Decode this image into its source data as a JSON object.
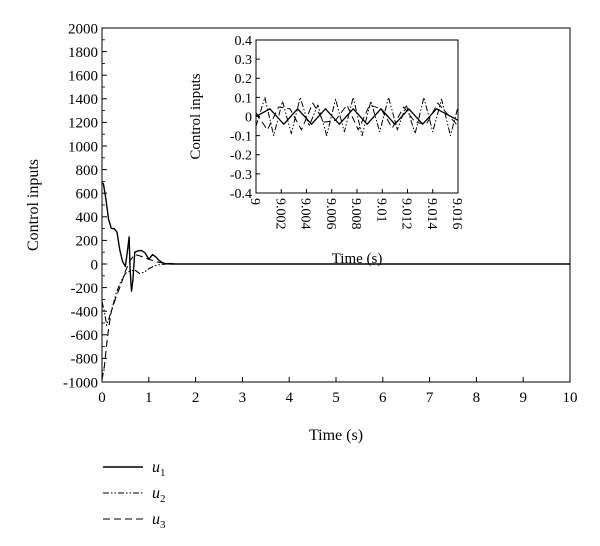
{
  "chart_data": [
    {
      "type": "line",
      "xlabel": "Time (s)",
      "ylabel": "Control inputs",
      "xlim": [
        0,
        10
      ],
      "ylim": [
        -1000,
        2000
      ],
      "xticks": [
        0,
        1,
        2,
        3,
        4,
        5,
        6,
        7,
        8,
        9,
        10
      ],
      "yticks": [
        -1000,
        -800,
        -600,
        -400,
        -200,
        0,
        200,
        400,
        600,
        800,
        1000,
        1200,
        1400,
        1600,
        1800,
        2000
      ],
      "legend_position": "bottom-left, below plot",
      "series": [
        {
          "name": "u1",
          "style": "solid",
          "x": [
            0,
            0.03,
            0.08,
            0.14,
            0.2,
            0.26,
            0.32,
            0.38,
            0.44,
            0.5,
            0.55,
            0.58,
            0.6,
            0.63,
            0.66,
            0.7,
            0.76,
            0.84,
            0.92,
            1.0,
            1.08,
            1.15,
            1.22,
            1.3,
            1.4,
            1.5,
            2,
            10
          ],
          "y": [
            690,
            680,
            560,
            380,
            300,
            300,
            270,
            120,
            20,
            -20,
            130,
            230,
            -40,
            -230,
            -140,
            100,
            110,
            115,
            95,
            40,
            80,
            60,
            30,
            8,
            2,
            0,
            0,
            0
          ]
        },
        {
          "name": "u2",
          "style": "dash-dot-dot",
          "x": [
            0,
            0.05,
            0.1,
            0.2,
            0.3,
            0.4,
            0.5,
            0.6,
            0.7,
            0.8,
            0.9,
            1.0,
            1.1,
            1.2,
            1.3,
            1.4,
            1.5,
            2,
            10
          ],
          "y": [
            -320,
            -400,
            -520,
            -400,
            -250,
            -150,
            -80,
            -60,
            -50,
            -80,
            -70,
            -40,
            -20,
            -8,
            -3,
            0,
            0,
            0,
            0
          ]
        },
        {
          "name": "u3",
          "style": "dashed",
          "x": [
            0,
            0.05,
            0.1,
            0.15,
            0.2,
            0.3,
            0.4,
            0.5,
            0.6,
            0.7,
            0.8,
            1.0,
            1.2,
            1.4,
            1.6,
            2,
            10
          ],
          "y": [
            -980,
            -870,
            -680,
            -520,
            -400,
            -280,
            -180,
            -60,
            30,
            80,
            70,
            40,
            15,
            5,
            0,
            0,
            0
          ]
        }
      ]
    },
    {
      "type": "line",
      "inset": true,
      "xlabel": "Time (s)",
      "ylabel": "Control inputs",
      "xlim": [
        9,
        9.016
      ],
      "ylim": [
        -0.4,
        0.4
      ],
      "xticks": [
        "9",
        "9.002",
        "9.004",
        "9.006",
        "9.008",
        "9.01",
        "9.012",
        "9.014",
        "9.016"
      ],
      "yticks": [
        "-0.4",
        "-0.3",
        "-0.2",
        "-0.1",
        "0",
        "0.1",
        "0.2",
        "0.3",
        "0.4"
      ],
      "series": [
        {
          "name": "u1",
          "style": "solid",
          "x": [
            9,
            9.0011,
            9.0022,
            9.0033,
            9.0044,
            9.0055,
            9.0066,
            9.0077,
            9.0088,
            9.0099,
            9.011,
            9.0121,
            9.0132,
            9.0143,
            9.016
          ],
          "y": [
            0,
            0.04,
            -0.04,
            0.04,
            -0.04,
            0.04,
            -0.04,
            0.04,
            -0.04,
            0.04,
            -0.04,
            0.04,
            -0.04,
            0.04,
            -0.02
          ]
        },
        {
          "name": "u2",
          "style": "dash-dot-dot",
          "x": [
            9,
            9.0007,
            9.0014,
            9.0021,
            9.0028,
            9.0035,
            9.0042,
            9.0049,
            9.0056,
            9.0063,
            9.007,
            9.0077,
            9.0084,
            9.0091,
            9.0098,
            9.0105,
            9.0112,
            9.0119,
            9.0126,
            9.0133,
            9.014,
            9.0147,
            9.0154,
            9.016
          ],
          "y": [
            -0.05,
            0.1,
            -0.1,
            0.08,
            -0.09,
            0.1,
            -0.05,
            0.06,
            -0.1,
            0.09,
            -0.08,
            0.1,
            -0.1,
            0.08,
            -0.08,
            0.1,
            -0.07,
            0.06,
            -0.09,
            0.1,
            -0.08,
            0.09,
            -0.1,
            0.05
          ]
        },
        {
          "name": "u3",
          "style": "dashed",
          "x": [
            9,
            9.0009,
            9.0018,
            9.0027,
            9.0036,
            9.0045,
            9.0054,
            9.0063,
            9.0072,
            9.0081,
            9.009,
            9.0099,
            9.0108,
            9.0117,
            9.0126,
            9.0135,
            9.0144,
            9.016
          ],
          "y": [
            0.02,
            -0.07,
            0.05,
            0.04,
            -0.07,
            0.07,
            -0.03,
            -0.02,
            0.06,
            -0.07,
            0.06,
            0.04,
            -0.06,
            0.05,
            -0.03,
            -0.04,
            0.07,
            -0.05
          ]
        }
      ]
    }
  ]
}
